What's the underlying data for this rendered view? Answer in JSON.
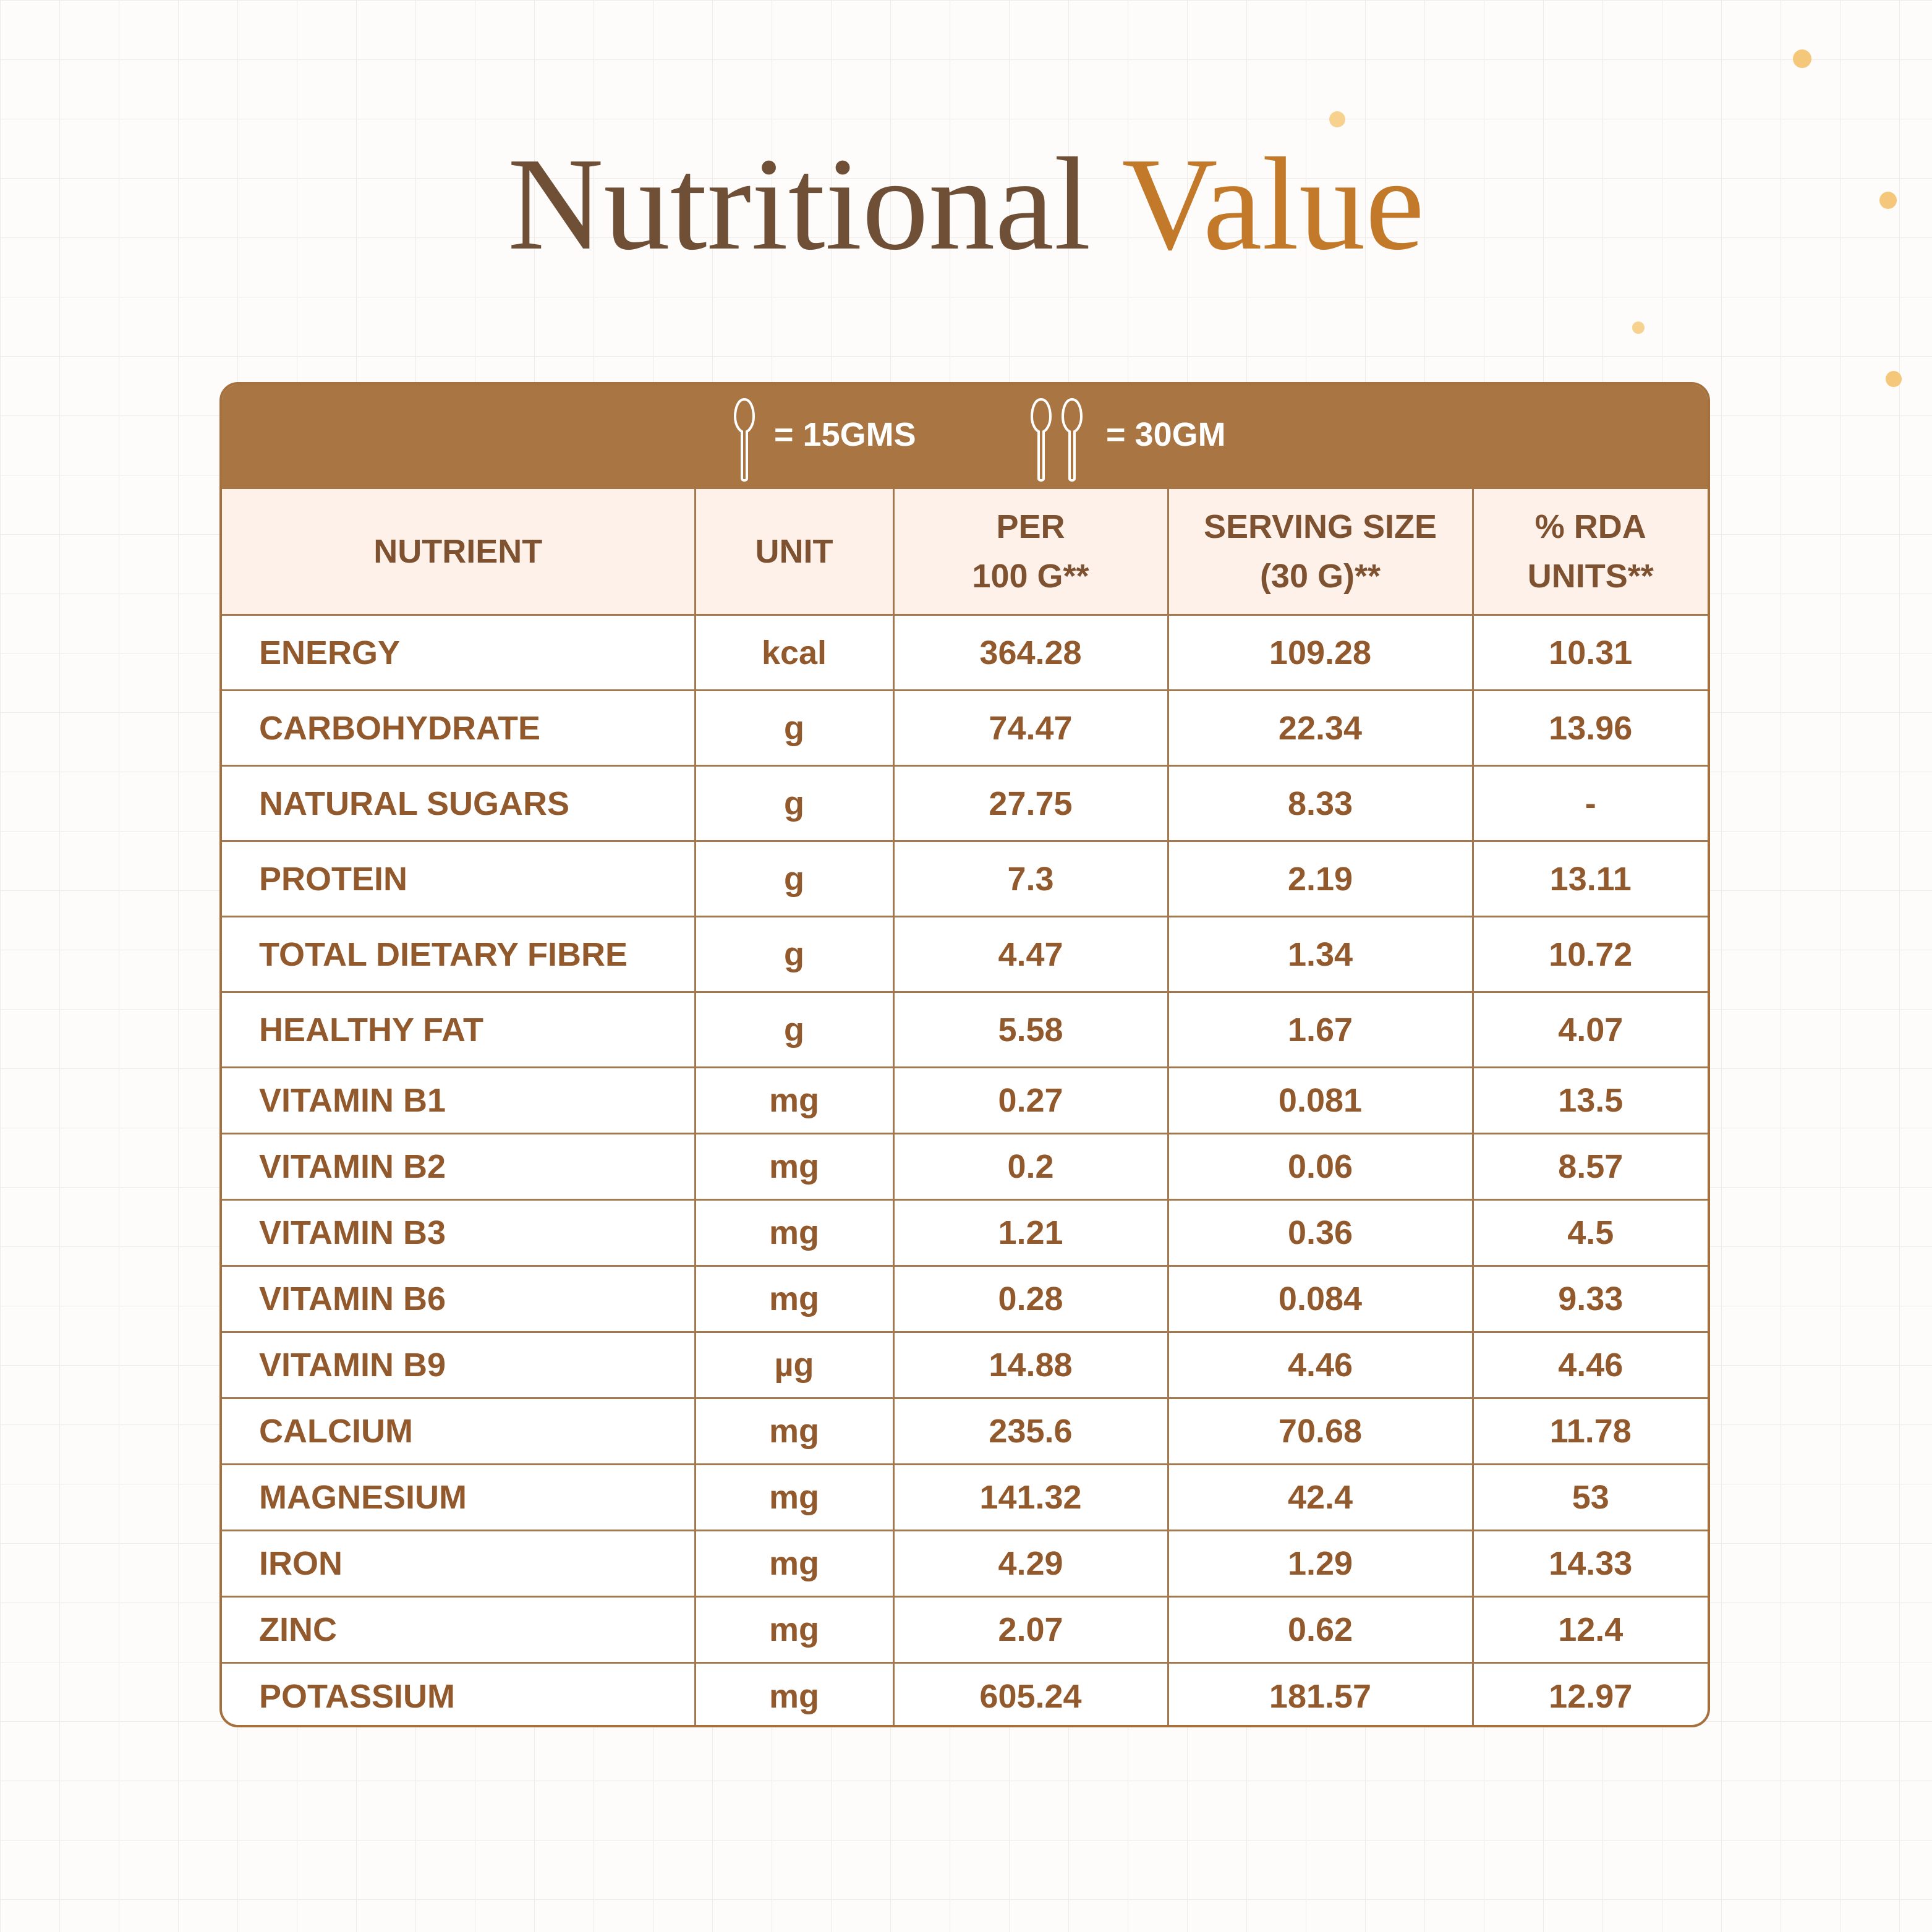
{
  "header": {
    "title": {
      "part1": "Nutritional",
      "part2": "Value"
    }
  },
  "banner": {
    "single_scoop": "= 15GMS",
    "double_scoop": "= 30GM"
  },
  "table": {
    "columns": [
      [
        "NUTRIENT"
      ],
      [
        "UNIT"
      ],
      [
        "PER",
        "100 G**"
      ],
      [
        "SERVING SIZE",
        "(30 G)**"
      ],
      [
        "% RDA",
        "UNITS**"
      ]
    ],
    "rows": [
      [
        "ENERGY",
        "kcal",
        "364.28",
        "109.28",
        "10.31"
      ],
      [
        "CARBOHYDRATE",
        "g",
        "74.47",
        "22.34",
        "13.96"
      ],
      [
        "NATURAL SUGARS",
        "g",
        "27.75",
        "8.33",
        "-"
      ],
      [
        "PROTEIN",
        "g",
        "7.3",
        "2.19",
        "13.11"
      ],
      [
        "TOTAL DIETARY FIBRE",
        "g",
        "4.47",
        "1.34",
        "10.72"
      ],
      [
        "HEALTHY FAT",
        "g",
        "5.58",
        "1.67",
        "4.07"
      ],
      [
        "VITAMIN B1",
        "mg",
        "0.27",
        "0.081",
        "13.5"
      ],
      [
        "VITAMIN B2",
        "mg",
        "0.2",
        "0.06",
        "8.57"
      ],
      [
        "VITAMIN B3",
        "mg",
        "1.21",
        "0.36",
        "4.5"
      ],
      [
        "VITAMIN B6",
        "mg",
        "0.28",
        "0.084",
        "9.33"
      ],
      [
        "VITAMIN B9",
        "µg",
        "14.88",
        "4.46",
        "4.46"
      ],
      [
        "CALCIUM",
        "mg",
        "235.6",
        "70.68",
        "11.78"
      ],
      [
        "MAGNESIUM",
        "mg",
        "141.32",
        "42.4",
        "53"
      ],
      [
        "IRON",
        "mg",
        "4.29",
        "1.29",
        "14.33"
      ],
      [
        "ZINC",
        "mg",
        "2.07",
        "0.62",
        "12.4"
      ],
      [
        "POTASSIUM",
        "mg",
        "605.24",
        "181.57",
        "12.97"
      ]
    ]
  }
}
